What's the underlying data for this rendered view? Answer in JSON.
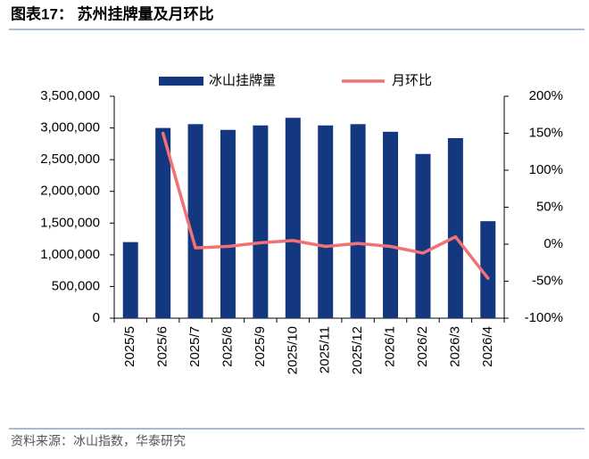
{
  "chart_data": {
    "type": "bar_line",
    "title": "图表17：  苏州挂牌量及月环比",
    "source": "资料来源：冰山指数，华泰研究",
    "categories": [
      "2025/5",
      "2025/6",
      "2025/7",
      "2025/8",
      "2025/9",
      "2025/10",
      "2025/11",
      "2025/12",
      "2026/1",
      "2026/2",
      "2026/3",
      "2026/4"
    ],
    "series": [
      {
        "name": "冰山挂牌量",
        "type": "bar",
        "color": "#14387f",
        "values": [
          1200000,
          3000000,
          3060000,
          2970000,
          3040000,
          3160000,
          3040000,
          3060000,
          2940000,
          2590000,
          2840000,
          1530000
        ]
      },
      {
        "name": "月环比",
        "type": "line",
        "axis": "y2",
        "color": "#f07275",
        "values": [
          null,
          150,
          -5,
          -3,
          2,
          5,
          -3,
          1,
          -3,
          -12,
          10,
          -46
        ]
      }
    ],
    "ylim": [
      0,
      3500000
    ],
    "yticks": [
      0,
      {
        "value": 500000,
        "label": "500,000"
      },
      {
        "value": 1000000,
        "label": "1,000,000"
      },
      {
        "value": 1500000,
        "label": "1,500,000"
      },
      {
        "value": 2000000,
        "label": "2,000,000"
      },
      {
        "value": 2500000,
        "label": "2,500,000"
      },
      {
        "value": 3000000,
        "label": "3,000,000"
      },
      {
        "value": 3500000,
        "label": "3,500,000"
      }
    ],
    "y2lim": [
      -100,
      200
    ],
    "y2ticks": [
      {
        "value": -100,
        "label": "-100%"
      },
      {
        "value": -50,
        "label": "-50%"
      },
      {
        "value": 0,
        "label": "0%"
      },
      {
        "value": 50,
        "label": "50%"
      },
      {
        "value": 100,
        "label": "100%"
      },
      {
        "value": 150,
        "label": "150%"
      },
      {
        "value": 200,
        "label": "200%"
      }
    ],
    "legend": "top"
  }
}
